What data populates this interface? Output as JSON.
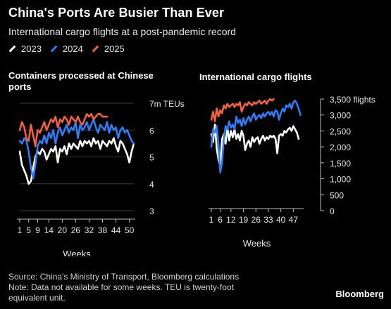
{
  "header": {
    "title": "China's Ports Are Busier Than Ever",
    "subtitle": "International cargo flights at a post-pandemic record"
  },
  "legend": [
    {
      "label": "2023",
      "color": "#ffffff"
    },
    {
      "label": "2024",
      "color": "#2e7cf6"
    },
    {
      "label": "2025",
      "color": "#f2613c"
    }
  ],
  "footer": {
    "source": "Source: China's Ministry of Transport, Bloomberg calculations",
    "note1": "Note: Data not available for some weeks. TEU is twenty-foot",
    "note2": "equivalent unit.",
    "brand": "Bloomberg"
  },
  "chart_data": [
    {
      "type": "line",
      "title": "Containers processed at Chinese ports",
      "xlabel": "Weeks",
      "ylabel": "",
      "xlim": [
        1,
        52
      ],
      "ylim": [
        3,
        7
      ],
      "x_ticks": [
        1,
        5,
        9,
        14,
        20,
        26,
        32,
        38,
        44,
        50
      ],
      "y_ticks": [
        3,
        4,
        5,
        6,
        7
      ],
      "y_tick_labels": [
        "3",
        "4",
        "5",
        "6",
        "7m TEUs"
      ],
      "grid": "horizontal",
      "series": [
        {
          "name": "2023",
          "color": "#ffffff",
          "x": [
            1,
            2,
            3,
            4,
            5,
            6,
            7,
            8,
            9,
            10,
            11,
            12,
            13,
            14,
            15,
            16,
            17,
            18,
            19,
            20,
            21,
            22,
            23,
            24,
            25,
            26,
            27,
            28,
            29,
            30,
            31,
            32,
            33,
            34,
            35,
            36,
            37,
            38,
            39,
            40,
            41,
            42,
            43,
            44,
            45,
            46,
            47,
            48,
            49,
            50,
            51,
            52
          ],
          "values": [
            5.2,
            4.7,
            4.5,
            4.3,
            4.0,
            4.1,
            4.6,
            5.0,
            5.2,
            5.1,
            5.3,
            5.2,
            4.9,
            5.1,
            5.3,
            5.2,
            5.4,
            4.8,
            5.3,
            5.2,
            5.4,
            5.1,
            5.5,
            5.3,
            5.5,
            5.4,
            5.3,
            5.6,
            5.4,
            5.6,
            5.5,
            5.6,
            5.4,
            5.7,
            5.5,
            5.6,
            5.3,
            5.6,
            5.5,
            5.4,
            5.6,
            5.5,
            5.7,
            5.4,
            5.2,
            5.6,
            5.5,
            5.3,
            5.1,
            4.8,
            5.2,
            5.5
          ]
        },
        {
          "name": "2024",
          "color": "#2e7cf6",
          "x": [
            1,
            2,
            3,
            4,
            5,
            6,
            7,
            8,
            9,
            10,
            11,
            12,
            13,
            14,
            15,
            16,
            17,
            18,
            19,
            20,
            21,
            22,
            23,
            24,
            25,
            26,
            27,
            28,
            29,
            30,
            31,
            32,
            33,
            34,
            35,
            36,
            37,
            38,
            39,
            40,
            41,
            42,
            43,
            44,
            45,
            46,
            47,
            48,
            49,
            50,
            51,
            52
          ],
          "values": [
            5.6,
            5.5,
            5.7,
            5.6,
            5.2,
            4.6,
            4.2,
            4.7,
            5.4,
            5.6,
            5.5,
            5.8,
            5.5,
            5.9,
            5.7,
            6.0,
            5.5,
            5.9,
            6.1,
            5.8,
            6.0,
            6.2,
            5.9,
            6.1,
            6.0,
            6.3,
            5.7,
            6.2,
            6.0,
            6.1,
            6.3,
            6.0,
            6.2,
            6.4,
            6.1,
            5.9,
            6.2,
            6.1,
            6.0,
            6.3,
            5.9,
            6.2,
            6.0,
            6.1,
            5.7,
            6.0,
            6.1,
            5.9,
            6.0,
            5.8,
            5.6,
            5.5
          ]
        },
        {
          "name": "2025",
          "color": "#f2613c",
          "x": [
            1,
            2,
            3,
            4,
            5,
            6,
            7,
            8,
            9,
            10,
            11,
            12,
            13,
            14,
            15,
            16,
            17,
            18,
            19,
            20,
            21,
            22,
            23,
            24,
            25,
            26,
            27,
            28,
            29,
            30,
            31,
            32,
            33,
            34,
            35,
            36,
            37,
            38,
            39,
            40
          ],
          "values": [
            6.0,
            6.3,
            6.1,
            5.7,
            5.6,
            6.2,
            5.8,
            5.4,
            6.0,
            5.9,
            6.1,
            6.3,
            6.0,
            6.2,
            6.4,
            6.3,
            6.5,
            6.1,
            6.4,
            6.3,
            6.5,
            6.4,
            6.2,
            6.5,
            6.4,
            6.3,
            6.5,
            6.3,
            6.2,
            6.4,
            6.6,
            6.5,
            6.6,
            6.4,
            6.5,
            6.6,
            6.6,
            6.5,
            6.5,
            6.5
          ]
        }
      ]
    },
    {
      "type": "line",
      "title": "International cargo flights",
      "xlabel": "Weeks",
      "ylabel": "",
      "xlim": [
        1,
        52
      ],
      "ylim": [
        0,
        3500
      ],
      "x_ticks": [
        1,
        6,
        12,
        19,
        26,
        33,
        40,
        47
      ],
      "y_ticks": [
        0,
        500,
        1000,
        1500,
        2000,
        2500,
        3000,
        3500
      ],
      "y_tick_labels": [
        "0",
        "500",
        "1,000",
        "1,500",
        "2,000",
        "2,500",
        "3,000",
        "3,500 flights"
      ],
      "grid": "none",
      "series": [
        {
          "name": "2023",
          "color": "#ffffff",
          "x": [
            1,
            2,
            3,
            4,
            5,
            6,
            7,
            8,
            9,
            10,
            11,
            12,
            13,
            14,
            15,
            16,
            17,
            18,
            19,
            20,
            21,
            22,
            23,
            24,
            25,
            26,
            27,
            28,
            29,
            30,
            31,
            32,
            33,
            34,
            35,
            36,
            37,
            38,
            39,
            40,
            41,
            42,
            43,
            44,
            45,
            46,
            47,
            48,
            49,
            50
          ],
          "values": [
            2400,
            2150,
            2700,
            1950,
            1600,
            1400,
            2250,
            2400,
            2100,
            2600,
            2200,
            2500,
            2300,
            2550,
            2250,
            2400,
            2200,
            2500,
            2350,
            1900,
            2100,
            2200,
            2000,
            2300,
            2150,
            2250,
            2300,
            2100,
            2250,
            2350,
            2200,
            2300,
            2250,
            2350,
            2300,
            2350,
            2250,
            1800,
            2350,
            2400,
            2350,
            2500,
            2450,
            2550,
            2600,
            2500,
            2650,
            2550,
            2450,
            2250
          ]
        },
        {
          "name": "2024",
          "color": "#2e7cf6",
          "x": [
            1,
            2,
            3,
            4,
            5,
            6,
            7,
            8,
            9,
            10,
            11,
            12,
            13,
            14,
            15,
            16,
            17,
            18,
            19,
            20,
            21,
            22,
            23,
            24,
            25,
            26,
            27,
            28,
            29,
            30,
            31,
            32,
            33,
            34,
            35,
            36,
            37,
            38,
            39,
            40,
            41,
            42,
            43,
            44,
            45,
            46,
            47,
            48,
            49,
            50,
            51
          ],
          "values": [
            2000,
            2550,
            2450,
            2650,
            2100,
            1200,
            1500,
            2250,
            2650,
            2550,
            2800,
            2600,
            2700,
            2550,
            2950,
            2750,
            2850,
            2650,
            2900,
            2700,
            2850,
            2950,
            2800,
            2950,
            3050,
            2850,
            2950,
            3000,
            2900,
            3050,
            2950,
            3050,
            3100,
            3000,
            3100,
            2950,
            3150,
            3100,
            2850,
            3050,
            3200,
            3100,
            3300,
            3250,
            3350,
            3200,
            3400,
            3450,
            3350,
            3200,
            3000
          ]
        },
        {
          "name": "2025",
          "color": "#f2613c",
          "x": [
            1,
            2,
            3,
            4,
            5,
            6,
            7,
            8,
            9,
            10,
            11,
            12,
            13,
            14,
            15,
            16,
            17,
            18,
            19,
            20,
            21,
            22,
            23,
            24,
            25,
            26,
            27,
            28,
            29,
            30,
            31,
            32,
            33,
            34,
            35,
            36
          ],
          "values": [
            2850,
            3100,
            2800,
            3200,
            2950,
            3150,
            3050,
            3300,
            3200,
            3350,
            3250,
            3300,
            3350,
            3250,
            3350,
            3300,
            3400,
            3100,
            3250,
            3350,
            3300,
            3400,
            3350,
            3300,
            3400,
            3350,
            3400,
            3450,
            3350,
            3400,
            3450,
            3350,
            3450,
            3500,
            3450,
            3500
          ]
        }
      ]
    }
  ]
}
